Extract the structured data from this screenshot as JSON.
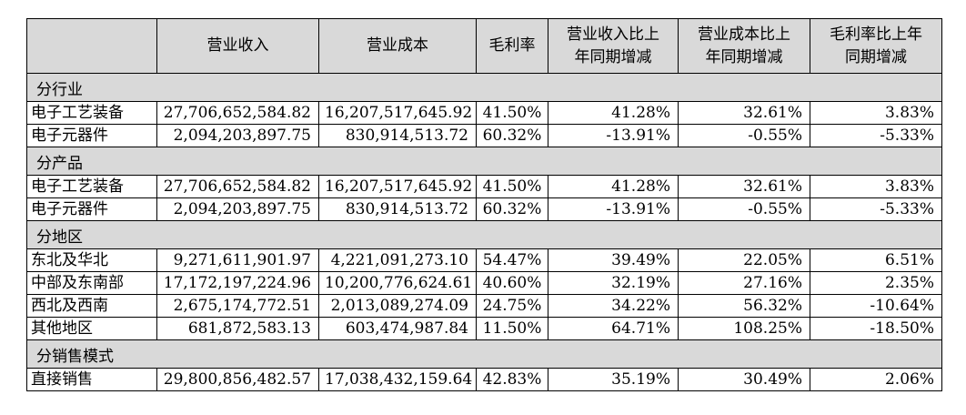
{
  "headers": [
    "",
    "营业收入",
    "营业成本",
    "毛利率",
    "营业收入比上年同期增减",
    "营业成本比上年同期增减",
    "毛利率比上年同期增减"
  ],
  "header_lines": [
    [
      ""
    ],
    [
      "营业收入"
    ],
    [
      "营业成本"
    ],
    [
      "毛利率"
    ],
    [
      "营业收入比上",
      "年同期增减"
    ],
    [
      "营业成本比上",
      "年同期增减"
    ],
    [
      "毛利率比上年",
      "同期增减"
    ]
  ],
  "sections": [
    {
      "title": "分行业",
      "rows": [
        [
          "电子工艺装备",
          "27,706,652,584.82",
          "16,207,517,645.92",
          "41.50%",
          "41.28%",
          "32.61%",
          "3.83%"
        ],
        [
          "电子元器件",
          "2,094,203,897.75",
          "830,914,513.72",
          "60.32%",
          "-13.91%",
          "-0.55%",
          "-5.33%"
        ]
      ]
    },
    {
      "title": "分产品",
      "rows": [
        [
          "电子工艺装备",
          "27,706,652,584.82",
          "16,207,517,645.92",
          "41.50%",
          "41.28%",
          "32.61%",
          "3.83%"
        ],
        [
          "电子元器件",
          "2,094,203,897.75",
          "830,914,513.72",
          "60.32%",
          "-13.91%",
          "-0.55%",
          "-5.33%"
        ]
      ]
    },
    {
      "title": "分地区",
      "rows": [
        [
          "东北及华北",
          "9,271,611,901.97",
          "4,221,091,273.10",
          "54.47%",
          "39.49%",
          "22.05%",
          "6.51%"
        ],
        [
          "中部及东南部",
          "17,172,197,224.96",
          "10,200,776,624.61",
          "40.60%",
          "32.19%",
          "27.16%",
          "2.35%"
        ],
        [
          "西北及西南",
          "2,675,174,772.51",
          "2,013,089,274.09",
          "24.75%",
          "34.22%",
          "56.32%",
          "-10.64%"
        ],
        [
          "其他地区",
          "681,872,583.13",
          "603,474,987.84",
          "11.50%",
          "64.71%",
          "108.25%",
          "-18.50%"
        ]
      ]
    },
    {
      "title": "分销售模式",
      "rows": [
        [
          "直接销售",
          "29,800,856,482.57",
          "17,038,432,159.64",
          "42.83%",
          "35.19%",
          "30.49%",
          "2.06%"
        ]
      ]
    }
  ],
  "colors": {
    "header_bg": "#d9d9d9",
    "section_bg": "#d9d9d9",
    "border": "#000000"
  }
}
